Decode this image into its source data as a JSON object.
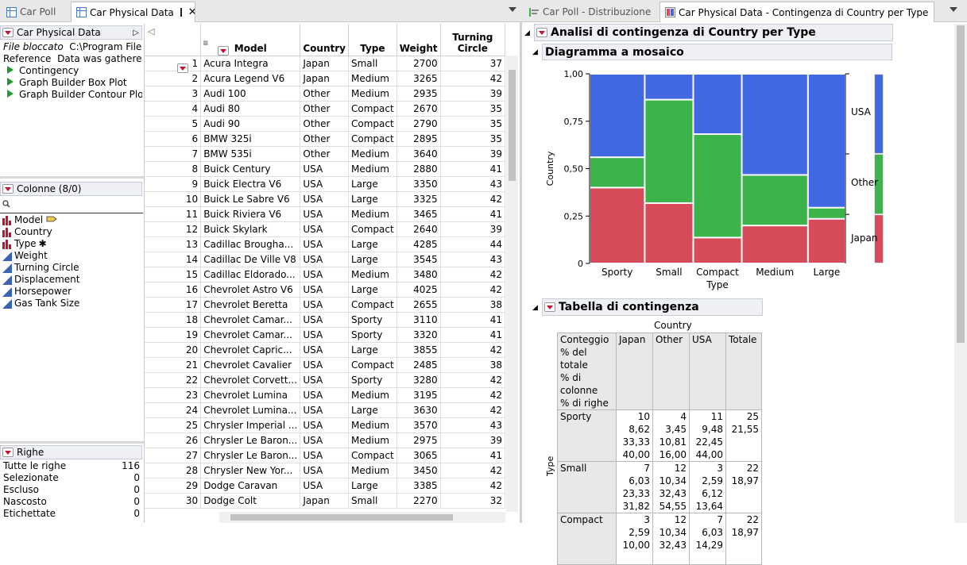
{
  "left_tabs": [
    {
      "label": "Car Poll"
    },
    {
      "label": "Car Physical Data"
    }
  ],
  "right_tabs": [
    {
      "label": "Car Poll - Distribuzione"
    },
    {
      "label": "Car Physical Data - Contingenza di Country per Type"
    }
  ],
  "table_panel": {
    "title": "Car Physical Data",
    "file_label": "File bloccato",
    "file_value": "C:\\Program Files\\S",
    "reference_label": "Reference",
    "reference_value": "Data was gathered fr",
    "scripts": [
      "Contingency",
      "Graph Builder Box Plot",
      "Graph Builder Contour Plot"
    ]
  },
  "columns_panel": {
    "title": "Colonne (8/0)",
    "search_icon": "search-icon",
    "columns": [
      {
        "name": "Model",
        "type": "nominal",
        "extra": "label-tag-icon"
      },
      {
        "name": "Country",
        "type": "nominal",
        "extra": ""
      },
      {
        "name": "Type",
        "type": "nominal",
        "extra": "✱"
      },
      {
        "name": "Weight",
        "type": "continuous",
        "extra": ""
      },
      {
        "name": "Turning Circle",
        "type": "continuous",
        "extra": ""
      },
      {
        "name": "Displacement",
        "type": "continuous",
        "extra": ""
      },
      {
        "name": "Horsepower",
        "type": "continuous",
        "extra": ""
      },
      {
        "name": "Gas Tank Size",
        "type": "continuous",
        "extra": ""
      }
    ]
  },
  "rows_panel": {
    "title": "Righe",
    "items": [
      {
        "label": "Tutte le righe",
        "value": "116"
      },
      {
        "label": "Selezionate",
        "value": "0"
      },
      {
        "label": "Escluso",
        "value": "0"
      },
      {
        "label": "Nascosto",
        "value": "0"
      },
      {
        "label": "Etichettate",
        "value": "0"
      }
    ]
  },
  "grid": {
    "headers": [
      "Model",
      "Country",
      "Type",
      "Weight",
      "Turning Circle"
    ],
    "rows": [
      [
        "1",
        "Acura Integra",
        "Japan",
        "Small",
        "2700",
        "37"
      ],
      [
        "2",
        "Acura Legend V6",
        "Japan",
        "Medium",
        "3265",
        "42"
      ],
      [
        "3",
        "Audi 100",
        "Other",
        "Medium",
        "2935",
        "39"
      ],
      [
        "4",
        "Audi 80",
        "Other",
        "Compact",
        "2670",
        "35"
      ],
      [
        "5",
        "Audi 90",
        "Other",
        "Compact",
        "2790",
        "35"
      ],
      [
        "6",
        "BMW 325i",
        "Other",
        "Compact",
        "2895",
        "35"
      ],
      [
        "7",
        "BMW 535i",
        "Other",
        "Medium",
        "3640",
        "39"
      ],
      [
        "8",
        "Buick Century",
        "USA",
        "Medium",
        "2880",
        "41"
      ],
      [
        "9",
        "Buick Electra V6",
        "USA",
        "Large",
        "3350",
        "43"
      ],
      [
        "10",
        "Buick Le Sabre V6",
        "USA",
        "Large",
        "3325",
        "42"
      ],
      [
        "11",
        "Buick Riviera V6",
        "USA",
        "Medium",
        "3465",
        "41"
      ],
      [
        "12",
        "Buick Skylark",
        "USA",
        "Compact",
        "2640",
        "39"
      ],
      [
        "13",
        "Cadillac Brougha...",
        "USA",
        "Large",
        "4285",
        "44"
      ],
      [
        "14",
        "Cadillac De Ville V8",
        "USA",
        "Large",
        "3545",
        "43"
      ],
      [
        "15",
        "Cadillac Eldorado...",
        "USA",
        "Medium",
        "3480",
        "42"
      ],
      [
        "16",
        "Chevrolet Astro V6",
        "USA",
        "Large",
        "4025",
        "42"
      ],
      [
        "17",
        "Chevrolet Beretta",
        "USA",
        "Compact",
        "2655",
        "38"
      ],
      [
        "18",
        "Chevrolet Camar...",
        "USA",
        "Sporty",
        "3110",
        "41"
      ],
      [
        "19",
        "Chevrolet Camar...",
        "USA",
        "Sporty",
        "3320",
        "41"
      ],
      [
        "20",
        "Chevrolet Capric...",
        "USA",
        "Large",
        "3855",
        "42"
      ],
      [
        "21",
        "Chevrolet Cavalier",
        "USA",
        "Compact",
        "2485",
        "38"
      ],
      [
        "22",
        "Chevrolet Corvett...",
        "USA",
        "Sporty",
        "3280",
        "42"
      ],
      [
        "23",
        "Chevrolet Lumina",
        "USA",
        "Medium",
        "3195",
        "42"
      ],
      [
        "24",
        "Chevrolet Lumina...",
        "USA",
        "Large",
        "3630",
        "42"
      ],
      [
        "25",
        "Chrysler Imperial ...",
        "USA",
        "Medium",
        "3570",
        "43"
      ],
      [
        "26",
        "Chrysler Le Baron...",
        "USA",
        "Medium",
        "2975",
        "39"
      ],
      [
        "27",
        "Chrysler Le Baron...",
        "USA",
        "Compact",
        "3065",
        "41"
      ],
      [
        "28",
        "Chrysler New Yor...",
        "USA",
        "Medium",
        "3450",
        "42"
      ],
      [
        "29",
        "Dodge Caravan",
        "USA",
        "Large",
        "3385",
        "42"
      ],
      [
        "30",
        "Dodge Colt",
        "Japan",
        "Small",
        "2270",
        "32"
      ]
    ]
  },
  "report": {
    "title": "Analisi di contingenza di Country per Type",
    "mosaic_title": "Diagramma a mosaico",
    "table_title": "Tabella di contingenza"
  },
  "chart_data": {
    "type": "mosaic",
    "title": "Diagramma a mosaico",
    "xlabel": "Type",
    "ylabel": "Country",
    "yticks": [
      "0",
      "0,25",
      "0,50",
      "0,75",
      "1,00"
    ],
    "ylim": [
      0,
      1
    ],
    "categories": [
      "Sporty",
      "Small",
      "Compact",
      "Medium",
      "Large"
    ],
    "category_shares": [
      0.2155,
      0.1897,
      0.1897,
      0.2586,
      0.1466
    ],
    "series": [
      {
        "name": "Japan",
        "color": "#d64a5a",
        "values": [
          0.4,
          0.3182,
          0.1364,
          0.2,
          0.2353
        ]
      },
      {
        "name": "Other",
        "color": "#3cb44b",
        "values": [
          0.16,
          0.5455,
          0.5455,
          0.2667,
          0.0588
        ]
      },
      {
        "name": "USA",
        "color": "#4169e1",
        "values": [
          0.44,
          0.1364,
          0.3182,
          0.5333,
          0.7059
        ]
      }
    ],
    "legend": [
      "USA",
      "Other",
      "Japan"
    ],
    "overall_shares": [
      0.2586,
      0.319,
      0.4224
    ]
  },
  "contingency": {
    "caption": "Country",
    "side_label": "Type",
    "stat_labels": [
      "Conteggio",
      "% del totale",
      "% di colonne",
      "% di righe"
    ],
    "columns": [
      "Japan",
      "Other",
      "USA",
      "Totale"
    ],
    "rows": [
      {
        "label": "Sporty",
        "cells": [
          [
            "10",
            "8,62",
            "33,33",
            "40,00"
          ],
          [
            "4",
            "3,45",
            "10,81",
            "16,00"
          ],
          [
            "11",
            "9,48",
            "22,45",
            "44,00"
          ],
          [
            "25",
            "21,55",
            "",
            ""
          ]
        ]
      },
      {
        "label": "Small",
        "cells": [
          [
            "7",
            "6,03",
            "23,33",
            "31,82"
          ],
          [
            "12",
            "10,34",
            "32,43",
            "54,55"
          ],
          [
            "3",
            "2,59",
            "6,12",
            "13,64"
          ],
          [
            "22",
            "18,97",
            "",
            ""
          ]
        ]
      },
      {
        "label": "Compact",
        "cells": [
          [
            "3",
            "2,59",
            "10,00",
            ""
          ],
          [
            "12",
            "10,34",
            "32,43",
            ""
          ],
          [
            "7",
            "6,03",
            "14,29",
            ""
          ],
          [
            "22",
            "18,97",
            "",
            ""
          ]
        ]
      }
    ]
  }
}
